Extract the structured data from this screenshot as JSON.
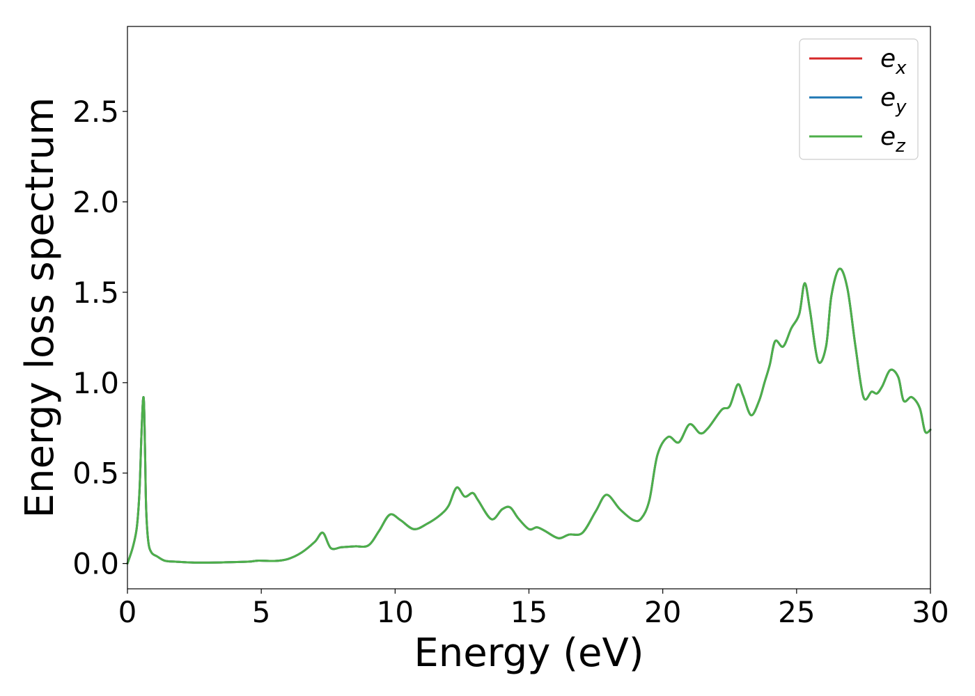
{
  "chart_data": {
    "type": "line",
    "title": "",
    "xlabel": "Energy (eV)",
    "ylabel": "Energy loss spectrum",
    "xlim": [
      0,
      30
    ],
    "ylim": [
      -0.14,
      2.97
    ],
    "xticks": [
      0,
      5,
      10,
      15,
      20,
      25,
      30
    ],
    "xtick_labels": [
      "0",
      "5",
      "10",
      "15",
      "20",
      "25",
      "30"
    ],
    "yticks": [
      0.0,
      0.5,
      1.0,
      1.5,
      2.0,
      2.5
    ],
    "ytick_labels": [
      "0.0",
      "0.5",
      "1.0",
      "1.5",
      "2.0",
      "2.5"
    ],
    "grid": false,
    "legend": {
      "placement": "top-right",
      "entries": [
        {
          "base": "e",
          "sub": "x",
          "color": "#d62728"
        },
        {
          "base": "e",
          "sub": "y",
          "color": "#1f77b4"
        },
        {
          "base": "e",
          "sub": "z",
          "color": "#4daf4a"
        }
      ]
    },
    "x": [
      0,
      0.2,
      0.35,
      0.45,
      0.52,
      0.58,
      0.62,
      0.66,
      0.7,
      0.78,
      0.9,
      1.1,
      1.4,
      1.8,
      2.5,
      3.5,
      4.5,
      4.9,
      5.5,
      6.0,
      6.5,
      7.0,
      7.3,
      7.6,
      8.0,
      8.5,
      9.0,
      9.4,
      9.8,
      10.2,
      10.7,
      11.2,
      11.7,
      12.0,
      12.3,
      12.6,
      12.9,
      13.1,
      13.6,
      14.0,
      14.3,
      14.6,
      15.0,
      15.3,
      15.6,
      16.1,
      16.5,
      17.0,
      17.5,
      17.9,
      18.4,
      18.9,
      19.2,
      19.5,
      19.8,
      20.2,
      20.6,
      21.0,
      21.4,
      21.7,
      22.2,
      22.5,
      22.8,
      23.0,
      23.3,
      23.6,
      23.8,
      24.0,
      24.2,
      24.5,
      24.8,
      25.1,
      25.3,
      25.5,
      25.8,
      26.1,
      26.3,
      26.6,
      26.9,
      27.2,
      27.5,
      27.8,
      28.0,
      28.2,
      28.5,
      28.8,
      29.0,
      29.3,
      29.6,
      29.8,
      30.0
    ],
    "series": [
      {
        "name": "e_x",
        "color": "#d62728",
        "values": [
          0.0,
          0.09,
          0.2,
          0.4,
          0.7,
          0.9,
          0.88,
          0.6,
          0.3,
          0.12,
          0.06,
          0.04,
          0.015,
          0.01,
          0.005,
          0.006,
          0.01,
          0.016,
          0.014,
          0.025,
          0.06,
          0.12,
          0.17,
          0.085,
          0.09,
          0.095,
          0.1,
          0.18,
          0.27,
          0.24,
          0.19,
          0.22,
          0.27,
          0.32,
          0.42,
          0.37,
          0.39,
          0.35,
          0.245,
          0.3,
          0.31,
          0.25,
          0.19,
          0.2,
          0.18,
          0.14,
          0.16,
          0.17,
          0.29,
          0.38,
          0.3,
          0.24,
          0.25,
          0.35,
          0.6,
          0.7,
          0.67,
          0.77,
          0.72,
          0.75,
          0.85,
          0.87,
          0.99,
          0.93,
          0.82,
          0.9,
          1.0,
          1.1,
          1.23,
          1.2,
          1.3,
          1.38,
          1.55,
          1.4,
          1.12,
          1.2,
          1.48,
          1.63,
          1.52,
          1.2,
          0.92,
          0.95,
          0.94,
          0.98,
          1.07,
          1.03,
          0.9,
          0.92,
          0.86,
          0.73,
          0.74
        ]
      },
      {
        "name": "e_y",
        "color": "#1f77b4",
        "values": [
          0.0,
          0.09,
          0.2,
          0.4,
          0.7,
          0.9,
          0.88,
          0.6,
          0.3,
          0.12,
          0.06,
          0.04,
          0.015,
          0.01,
          0.005,
          0.006,
          0.01,
          0.016,
          0.014,
          0.025,
          0.06,
          0.12,
          0.17,
          0.085,
          0.09,
          0.095,
          0.1,
          0.18,
          0.27,
          0.24,
          0.19,
          0.22,
          0.27,
          0.32,
          0.42,
          0.37,
          0.39,
          0.35,
          0.245,
          0.3,
          0.31,
          0.25,
          0.19,
          0.2,
          0.18,
          0.14,
          0.16,
          0.17,
          0.29,
          0.38,
          0.3,
          0.24,
          0.25,
          0.35,
          0.6,
          0.7,
          0.67,
          0.77,
          0.72,
          0.75,
          0.85,
          0.87,
          0.99,
          0.93,
          0.82,
          0.9,
          1.0,
          1.1,
          1.23,
          1.2,
          1.3,
          1.38,
          1.55,
          1.4,
          1.12,
          1.2,
          1.48,
          1.63,
          1.52,
          1.2,
          0.92,
          0.95,
          0.94,
          0.98,
          1.07,
          1.03,
          0.9,
          0.92,
          0.86,
          0.73,
          0.74
        ]
      },
      {
        "name": "e_z",
        "color": "#4daf4a",
        "values": [
          0.0,
          0.09,
          0.2,
          0.4,
          0.7,
          0.9,
          0.88,
          0.6,
          0.3,
          0.12,
          0.06,
          0.04,
          0.015,
          0.01,
          0.005,
          0.006,
          0.01,
          0.016,
          0.014,
          0.025,
          0.06,
          0.12,
          0.17,
          0.085,
          0.09,
          0.095,
          0.1,
          0.18,
          0.27,
          0.24,
          0.19,
          0.22,
          0.27,
          0.32,
          0.42,
          0.37,
          0.39,
          0.35,
          0.245,
          0.3,
          0.31,
          0.25,
          0.19,
          0.2,
          0.18,
          0.14,
          0.16,
          0.17,
          0.29,
          0.38,
          0.3,
          0.24,
          0.25,
          0.35,
          0.6,
          0.7,
          0.67,
          0.77,
          0.72,
          0.75,
          0.85,
          0.87,
          0.99,
          0.93,
          0.82,
          0.9,
          1.0,
          1.1,
          1.23,
          1.2,
          1.3,
          1.38,
          1.55,
          1.4,
          1.12,
          1.2,
          1.48,
          1.63,
          1.52,
          1.2,
          0.92,
          0.95,
          0.94,
          0.98,
          1.07,
          1.03,
          0.9,
          0.92,
          0.86,
          0.73,
          0.74
        ]
      }
    ]
  }
}
